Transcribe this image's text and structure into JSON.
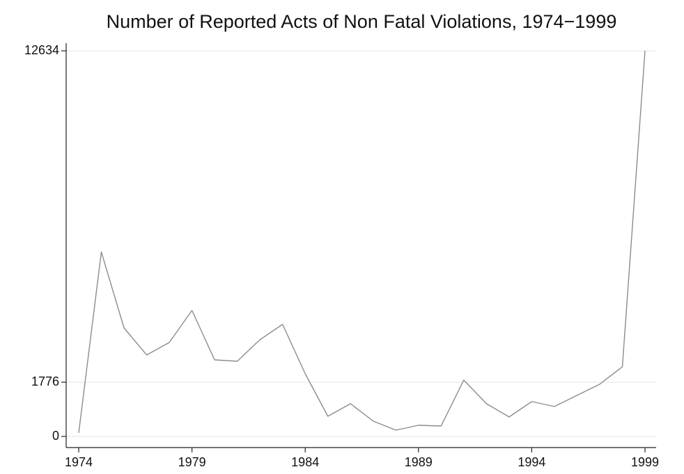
{
  "chart_data": {
    "type": "line",
    "title": "Number of Reported Acts of Non Fatal Violations, 1974−1999",
    "x": [
      1974,
      1975,
      1976,
      1977,
      1978,
      1979,
      1980,
      1981,
      1982,
      1983,
      1984,
      1985,
      1986,
      1987,
      1988,
      1989,
      1990,
      1991,
      1992,
      1993,
      1994,
      1995,
      1996,
      1997,
      1998,
      1999
    ],
    "series": [
      {
        "color": "#8c8c8c",
        "values": [
          114,
          6043,
          3558,
          2668,
          3079,
          4128,
          2509,
          2463,
          3170,
          3672,
          2052,
          661,
          1072,
          502,
          205,
          365,
          342,
          1847,
          1072,
          639,
          1140,
          981,
          1345,
          1710,
          2280,
          12634
        ]
      }
    ],
    "xlim": [
      1974,
      1999
    ],
    "xticks": [
      1974,
      1979,
      1984,
      1989,
      1994,
      1999
    ],
    "ylim": [
      0,
      12634
    ],
    "yticks": [
      0,
      1776,
      12634
    ],
    "grid": true
  }
}
